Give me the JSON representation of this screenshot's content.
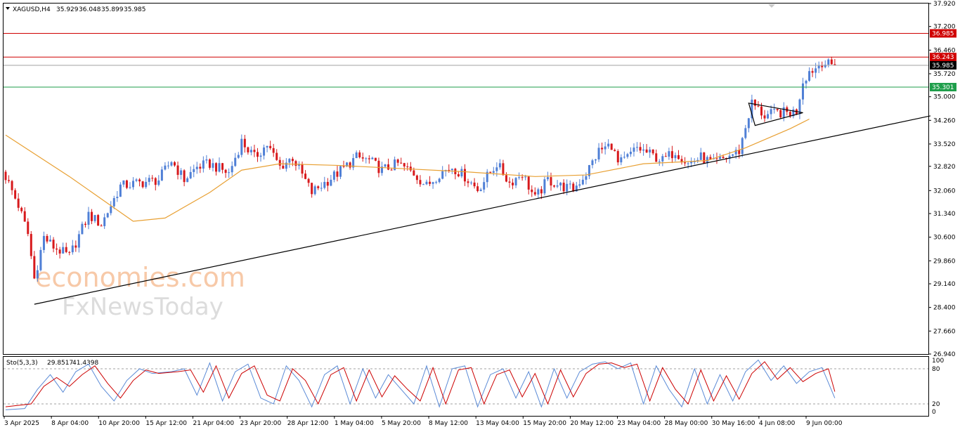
{
  "chart_data": {
    "type": "candlestick",
    "symbol": "XAGUSD,H4",
    "ohlc": [
      "35.929",
      "36.048",
      "35.899",
      "35.985"
    ],
    "y_axis": {
      "min": 26.94,
      "max": 37.92,
      "ticks": [
        "37.920",
        "37.200",
        "36.460",
        "35.720",
        "35.000",
        "34.260",
        "33.520",
        "32.820",
        "32.060",
        "31.340",
        "30.600",
        "29.860",
        "29.140",
        "28.400",
        "27.660",
        "26.940"
      ]
    },
    "x_axis_labels": [
      "3 Apr 2025",
      "8 Apr 04:00",
      "10 Apr 20:00",
      "15 Apr 12:00",
      "21 Apr 04:00",
      "23 Apr 20:00",
      "28 Apr 12:00",
      "1 May 04:00",
      "5 May 20:00",
      "8 May 12:00",
      "13 May 04:00",
      "15 May 20:00",
      "20 May 12:00",
      "23 May 04:00",
      "28 May 00:00",
      "30 May 16:00",
      "4 Jun 08:00",
      "9 Jun 00:00"
    ],
    "horizontal_lines": [
      {
        "value": 36.985,
        "label": "36.985",
        "color": "#d00000"
      },
      {
        "value": 36.243,
        "label": "36.243",
        "color": "#d00000"
      },
      {
        "value": 35.985,
        "label": "35.985",
        "color": "#000000"
      },
      {
        "value": 35.301,
        "label": "35.301",
        "color": "#1e9e4a"
      }
    ],
    "price_path": [
      [
        0,
        32.5
      ],
      [
        4,
        31.6
      ],
      [
        7,
        30.7
      ],
      [
        9,
        29.3
      ],
      [
        12,
        30.6
      ],
      [
        15,
        30.3
      ],
      [
        20,
        30.0
      ],
      [
        26,
        31.3
      ],
      [
        30,
        31.0
      ],
      [
        36,
        32.2
      ],
      [
        42,
        32.3
      ],
      [
        48,
        32.4
      ],
      [
        52,
        33.0
      ],
      [
        56,
        32.4
      ],
      [
        60,
        32.8
      ],
      [
        64,
        32.9
      ],
      [
        70,
        32.6
      ],
      [
        74,
        33.6
      ],
      [
        78,
        33.1
      ],
      [
        82,
        33.5
      ],
      [
        86,
        32.8
      ],
      [
        90,
        33.1
      ],
      [
        96,
        32.0
      ],
      [
        100,
        32.3
      ],
      [
        104,
        32.6
      ],
      [
        110,
        33.1
      ],
      [
        114,
        33.0
      ],
      [
        118,
        32.7
      ],
      [
        123,
        32.9
      ],
      [
        128,
        32.6
      ],
      [
        132,
        32.2
      ],
      [
        136,
        32.6
      ],
      [
        140,
        32.8
      ],
      [
        144,
        32.5
      ],
      [
        148,
        32.1
      ],
      [
        154,
        32.9
      ],
      [
        158,
        32.3
      ],
      [
        162,
        32.6
      ],
      [
        166,
        31.8
      ],
      [
        170,
        32.4
      ],
      [
        174,
        32.2
      ],
      [
        178,
        32.1
      ],
      [
        182,
        32.6
      ],
      [
        186,
        33.3
      ],
      [
        190,
        33.5
      ],
      [
        192,
        32.9
      ],
      [
        194,
        33.0
      ],
      [
        198,
        33.4
      ],
      [
        202,
        33.2
      ],
      [
        206,
        33.0
      ],
      [
        210,
        33.3
      ],
      [
        214,
        32.9
      ],
      [
        218,
        33.1
      ],
      [
        222,
        32.9
      ],
      [
        226,
        33.1
      ],
      [
        230,
        33.3
      ],
      [
        234,
        34.8
      ],
      [
        238,
        34.4
      ],
      [
        242,
        34.5
      ],
      [
        246,
        34.5
      ],
      [
        248,
        34.55
      ],
      [
        250,
        35.5
      ],
      [
        252,
        35.8
      ],
      [
        254,
        35.9
      ],
      [
        256,
        36.1
      ],
      [
        258,
        36.0
      ],
      [
        260,
        35.985
      ]
    ],
    "ma_path": [
      [
        0,
        33.8
      ],
      [
        20,
        32.5
      ],
      [
        40,
        31.1
      ],
      [
        50,
        31.2
      ],
      [
        64,
        32.0
      ],
      [
        74,
        32.7
      ],
      [
        86,
        32.9
      ],
      [
        104,
        32.85
      ],
      [
        124,
        32.75
      ],
      [
        144,
        32.65
      ],
      [
        166,
        32.5
      ],
      [
        182,
        32.55
      ],
      [
        200,
        32.9
      ],
      [
        220,
        33.0
      ],
      [
        232,
        33.4
      ],
      [
        246,
        34.0
      ],
      [
        252,
        34.3
      ]
    ],
    "trendline": {
      "from": [
        9,
        28.5
      ],
      "to": [
        290,
        34.4
      ]
    },
    "triangle": [
      [
        233,
        34.8
      ],
      [
        250,
        34.5
      ],
      [
        235,
        34.1
      ]
    ],
    "indicator": {
      "name": "Sto(5,3,3)",
      "main_value": "29.8517",
      "signal_value": "41.4398",
      "levels": [
        "100",
        "80",
        "20",
        "0"
      ],
      "main": [
        [
          0,
          10
        ],
        [
          6,
          12
        ],
        [
          10,
          45
        ],
        [
          14,
          70
        ],
        [
          18,
          40
        ],
        [
          22,
          75
        ],
        [
          26,
          88
        ],
        [
          30,
          50
        ],
        [
          34,
          25
        ],
        [
          38,
          60
        ],
        [
          42,
          80
        ],
        [
          46,
          72
        ],
        [
          52,
          75
        ],
        [
          56,
          80
        ],
        [
          60,
          35
        ],
        [
          64,
          90
        ],
        [
          68,
          25
        ],
        [
          72,
          75
        ],
        [
          76,
          88
        ],
        [
          80,
          30
        ],
        [
          84,
          20
        ],
        [
          88,
          85
        ],
        [
          92,
          60
        ],
        [
          96,
          15
        ],
        [
          100,
          70
        ],
        [
          104,
          85
        ],
        [
          108,
          20
        ],
        [
          112,
          80
        ],
        [
          116,
          30
        ],
        [
          120,
          70
        ],
        [
          124,
          45
        ],
        [
          128,
          20
        ],
        [
          132,
          85
        ],
        [
          136,
          15
        ],
        [
          140,
          80
        ],
        [
          144,
          85
        ],
        [
          148,
          15
        ],
        [
          152,
          70
        ],
        [
          156,
          80
        ],
        [
          160,
          30
        ],
        [
          164,
          75
        ],
        [
          168,
          15
        ],
        [
          172,
          80
        ],
        [
          176,
          30
        ],
        [
          180,
          75
        ],
        [
          184,
          88
        ],
        [
          188,
          92
        ],
        [
          192,
          80
        ],
        [
          196,
          90
        ],
        [
          200,
          20
        ],
        [
          204,
          85
        ],
        [
          208,
          45
        ],
        [
          212,
          15
        ],
        [
          216,
          80
        ],
        [
          220,
          20
        ],
        [
          224,
          70
        ],
        [
          228,
          25
        ],
        [
          232,
          75
        ],
        [
          236,
          95
        ],
        [
          240,
          60
        ],
        [
          244,
          85
        ],
        [
          248,
          55
        ],
        [
          252,
          75
        ],
        [
          256,
          82
        ],
        [
          260,
          30
        ]
      ],
      "signal": [
        [
          0,
          15
        ],
        [
          8,
          20
        ],
        [
          12,
          50
        ],
        [
          16,
          65
        ],
        [
          20,
          50
        ],
        [
          24,
          70
        ],
        [
          28,
          85
        ],
        [
          32,
          55
        ],
        [
          36,
          30
        ],
        [
          40,
          60
        ],
        [
          44,
          78
        ],
        [
          48,
          72
        ],
        [
          54,
          75
        ],
        [
          58,
          78
        ],
        [
          62,
          40
        ],
        [
          66,
          85
        ],
        [
          70,
          30
        ],
        [
          74,
          72
        ],
        [
          78,
          85
        ],
        [
          82,
          35
        ],
        [
          86,
          25
        ],
        [
          90,
          80
        ],
        [
          94,
          60
        ],
        [
          98,
          20
        ],
        [
          102,
          70
        ],
        [
          106,
          82
        ],
        [
          110,
          25
        ],
        [
          114,
          78
        ],
        [
          118,
          32
        ],
        [
          122,
          68
        ],
        [
          126,
          45
        ],
        [
          130,
          25
        ],
        [
          134,
          82
        ],
        [
          138,
          20
        ],
        [
          142,
          78
        ],
        [
          146,
          82
        ],
        [
          150,
          20
        ],
        [
          154,
          70
        ],
        [
          158,
          78
        ],
        [
          162,
          32
        ],
        [
          166,
          72
        ],
        [
          170,
          20
        ],
        [
          174,
          78
        ],
        [
          178,
          32
        ],
        [
          182,
          72
        ],
        [
          186,
          88
        ],
        [
          190,
          90
        ],
        [
          194,
          82
        ],
        [
          198,
          88
        ],
        [
          202,
          25
        ],
        [
          206,
          82
        ],
        [
          210,
          45
        ],
        [
          214,
          20
        ],
        [
          218,
          78
        ],
        [
          222,
          25
        ],
        [
          226,
          68
        ],
        [
          230,
          28
        ],
        [
          234,
          72
        ],
        [
          238,
          92
        ],
        [
          242,
          62
        ],
        [
          246,
          82
        ],
        [
          250,
          58
        ],
        [
          254,
          72
        ],
        [
          258,
          80
        ],
        [
          260,
          41
        ]
      ]
    },
    "colors": {
      "up": "#4f7fd6",
      "down": "#d7191c",
      "ma": "#e8a033",
      "stoch_main": "#5a8ad6",
      "stoch_signal": "#cc0000"
    }
  },
  "watermark": {
    "line1": "economies.com",
    "line2": "FxNewsToday"
  }
}
